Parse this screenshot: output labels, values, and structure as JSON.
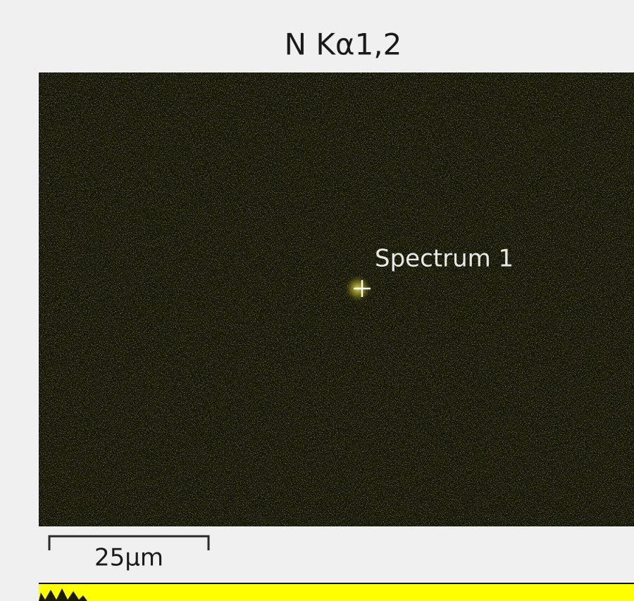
{
  "map": {
    "title": "N Kα1,2",
    "annotation": "Spectrum 1",
    "scale_bar": "25µm"
  }
}
